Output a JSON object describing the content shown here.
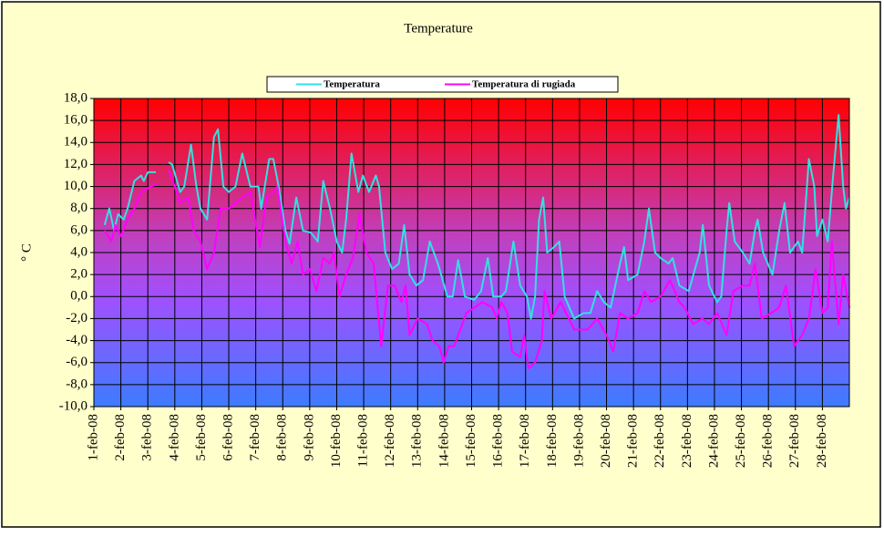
{
  "chart_data": {
    "type": "line",
    "title": "Temperature",
    "ylabel": "° C",
    "xlim": [
      0,
      28
    ],
    "ylim": [
      -10,
      18
    ],
    "yticks": [
      {
        "value": -10,
        "label": "-10,0"
      },
      {
        "value": -8,
        "label": "-8,0"
      },
      {
        "value": -6,
        "label": "-6,0"
      },
      {
        "value": -4,
        "label": "-4,0"
      },
      {
        "value": -2,
        "label": "-2,0"
      },
      {
        "value": 0,
        "label": "0,0"
      },
      {
        "value": 2,
        "label": "2,0"
      },
      {
        "value": 4,
        "label": "4,0"
      },
      {
        "value": 6,
        "label": "6,0"
      },
      {
        "value": 8,
        "label": "8,0"
      },
      {
        "value": 10,
        "label": "10,0"
      },
      {
        "value": 12,
        "label": "12,0"
      },
      {
        "value": 14,
        "label": "14,0"
      },
      {
        "value": 16,
        "label": "16,0"
      },
      {
        "value": 18,
        "label": "18,0"
      }
    ],
    "xticks": [
      {
        "value": 0,
        "label": "1-feb-08"
      },
      {
        "value": 1,
        "label": "2-feb-08"
      },
      {
        "value": 2,
        "label": "3-feb-08"
      },
      {
        "value": 3,
        "label": "4-feb-08"
      },
      {
        "value": 4,
        "label": "5-feb-08"
      },
      {
        "value": 5,
        "label": "6-feb-08"
      },
      {
        "value": 6,
        "label": "7-feb-08"
      },
      {
        "value": 7,
        "label": "8-feb-08"
      },
      {
        "value": 8,
        "label": "9-feb-08"
      },
      {
        "value": 9,
        "label": "10-feb-08"
      },
      {
        "value": 10,
        "label": "11-feb-08"
      },
      {
        "value": 11,
        "label": "12-feb-08"
      },
      {
        "value": 12,
        "label": "13-feb-08"
      },
      {
        "value": 13,
        "label": "14-feb-08"
      },
      {
        "value": 14,
        "label": "15-feb-08"
      },
      {
        "value": 15,
        "label": "16-feb-08"
      },
      {
        "value": 16,
        "label": "17-feb-08"
      },
      {
        "value": 17,
        "label": "18-feb-08"
      },
      {
        "value": 18,
        "label": "19-feb-08"
      },
      {
        "value": 19,
        "label": "20-feb-08"
      },
      {
        "value": 20,
        "label": "21-feb-08"
      },
      {
        "value": 21,
        "label": "22-feb-08"
      },
      {
        "value": 22,
        "label": "23-feb-08"
      },
      {
        "value": 23,
        "label": "24-feb-08"
      },
      {
        "value": 24,
        "label": "25-feb-08"
      },
      {
        "value": 25,
        "label": "26-feb-08"
      },
      {
        "value": 26,
        "label": "27-feb-08"
      },
      {
        "value": 27,
        "label": "28-feb-08"
      }
    ],
    "grid": true,
    "series": [
      {
        "name": "Temperatura",
        "color": "#33e0e0",
        "x": [
          0.4,
          0.57,
          0.75,
          0.9,
          1.1,
          1.25,
          1.5,
          1.75,
          1.85,
          2.0,
          2.3,
          2.5,
          2.77,
          2.9,
          3.2,
          3.35,
          3.6,
          3.8,
          3.95,
          4.2,
          4.45,
          4.6,
          4.8,
          5.0,
          5.25,
          5.5,
          5.8,
          6.1,
          6.2,
          6.5,
          6.65,
          6.85,
          7.1,
          7.25,
          7.5,
          7.75,
          8.05,
          8.3,
          8.5,
          8.75,
          9.0,
          9.2,
          9.35,
          9.55,
          9.8,
          9.97,
          10.2,
          10.45,
          10.57,
          10.8,
          11.05,
          11.3,
          11.5,
          11.7,
          11.95,
          12.2,
          12.45,
          12.75,
          13.1,
          13.3,
          13.5,
          13.75,
          14.1,
          14.35,
          14.6,
          14.8,
          15.1,
          15.27,
          15.55,
          15.8,
          16.05,
          16.2,
          16.35,
          16.5,
          16.65,
          16.8,
          17.05,
          17.25,
          17.45,
          17.8,
          18.15,
          18.4,
          18.65,
          18.9,
          19.15,
          19.5,
          19.65,
          19.8,
          20.15,
          20.4,
          20.57,
          20.8,
          21.0,
          21.3,
          21.45,
          21.7,
          22.05,
          22.45,
          22.57,
          22.8,
          23.1,
          23.25,
          23.45,
          23.55,
          23.75,
          24.05,
          24.3,
          24.5,
          24.6,
          24.8,
          25.15,
          25.4,
          25.6,
          25.8,
          26.1,
          26.25,
          26.5,
          26.7,
          26.8,
          27.0,
          27.2,
          27.4,
          27.6,
          27.77,
          27.87,
          28.0
        ],
        "values": [
          6.5,
          8,
          6,
          7.5,
          7,
          8,
          10.5,
          11,
          10.5,
          11.3,
          11.3,
          null,
          12.2,
          12,
          9.5,
          10,
          13.8,
          10,
          8,
          7,
          14.5,
          15.2,
          10,
          9.5,
          10,
          13,
          10,
          10,
          8,
          12.5,
          12.5,
          10,
          6,
          4.8,
          9,
          6,
          5.8,
          5,
          10.5,
          8,
          5,
          4,
          7,
          13,
          9.5,
          11,
          9.5,
          11,
          10,
          4,
          2.5,
          3,
          6.5,
          2,
          1,
          1.5,
          5,
          3,
          0,
          0,
          3.3,
          0,
          -0.3,
          0.5,
          3.5,
          0,
          0,
          0.5,
          5,
          1,
          0,
          -2,
          0,
          7,
          9,
          4,
          4.5,
          5,
          0,
          -2,
          -1.5,
          -1.5,
          0.5,
          -0.5,
          -1,
          3,
          4.5,
          1.5,
          2,
          5,
          8,
          4,
          3.5,
          3,
          3.5,
          1,
          0.5,
          4,
          6.5,
          1,
          -0.5,
          0,
          6,
          8.5,
          5,
          4,
          3,
          6,
          7,
          4,
          2,
          6,
          8.5,
          4,
          5,
          4,
          12.5,
          10,
          5.5,
          7,
          5,
          11,
          16.5,
          10,
          8,
          9
        ]
      },
      {
        "name": "Temperatura di rugiada",
        "color": "#ff00ff",
        "x": [
          0.4,
          0.65,
          0.8,
          1.0,
          1.25,
          1.5,
          1.75,
          2.1,
          2.33,
          2.5,
          2.77,
          3.0,
          3.2,
          3.5,
          3.7,
          3.95,
          4.2,
          4.45,
          4.7,
          5.0,
          5.25,
          5.5,
          5.8,
          6.15,
          6.4,
          6.65,
          6.8,
          7.1,
          7.33,
          7.55,
          7.75,
          8.0,
          8.25,
          8.5,
          8.75,
          8.9,
          9.1,
          9.35,
          9.6,
          9.85,
          10.1,
          10.37,
          10.65,
          10.9,
          11.15,
          11.4,
          11.55,
          11.7,
          12.0,
          12.35,
          12.55,
          12.8,
          12.97,
          13.15,
          13.35,
          13.58,
          13.8,
          14.1,
          14.4,
          14.77,
          14.93,
          15.1,
          15.33,
          15.5,
          15.8,
          15.95,
          16.1,
          16.35,
          16.6,
          16.7,
          16.95,
          17.3,
          17.8,
          18.3,
          18.65,
          19.0,
          19.25,
          19.5,
          19.8,
          20.15,
          20.4,
          20.65,
          21.0,
          21.35,
          21.7,
          21.9,
          22.2,
          22.55,
          22.8,
          23.1,
          23.45,
          23.7,
          24.05,
          24.3,
          24.5,
          24.75,
          25.1,
          25.4,
          25.65,
          25.95,
          26.25,
          26.5,
          26.75,
          27.0,
          27.2,
          27.35,
          27.6,
          27.77,
          28.0
        ],
        "values": [
          6,
          5,
          6.5,
          5.5,
          7,
          8,
          9.5,
          10,
          10.2,
          null,
          11.5,
          10,
          8.5,
          9,
          6,
          5,
          2.5,
          4,
          8,
          8,
          8.5,
          9,
          9.5,
          4.5,
          9,
          9.5,
          10,
          5,
          3,
          5,
          2,
          2.5,
          0.5,
          3.5,
          3,
          4,
          0,
          2,
          3.5,
          7.5,
          4,
          3,
          -4.5,
          1,
          1,
          -0.5,
          1,
          -3.5,
          -2,
          -2.5,
          -4,
          -4.5,
          -6,
          -4.5,
          -4.5,
          -3,
          -1.5,
          -1,
          -0.5,
          -1,
          -2,
          -0.5,
          -1.5,
          -5,
          -5.5,
          -3.5,
          -6.5,
          -6,
          -4,
          0.5,
          -2,
          -0.5,
          -3,
          -3,
          -2,
          -3.5,
          -5,
          -1.5,
          -2,
          -1.5,
          0.5,
          -0.5,
          0,
          1.5,
          -0.5,
          -1,
          -2.5,
          -2,
          -2.5,
          -1.5,
          -3.5,
          0.5,
          1,
          1,
          3,
          -2,
          -1.5,
          -1,
          1,
          -4.5,
          -3.5,
          -2,
          2.5,
          -1.5,
          -1,
          5,
          -2.5,
          2,
          -1
        ]
      }
    ]
  }
}
